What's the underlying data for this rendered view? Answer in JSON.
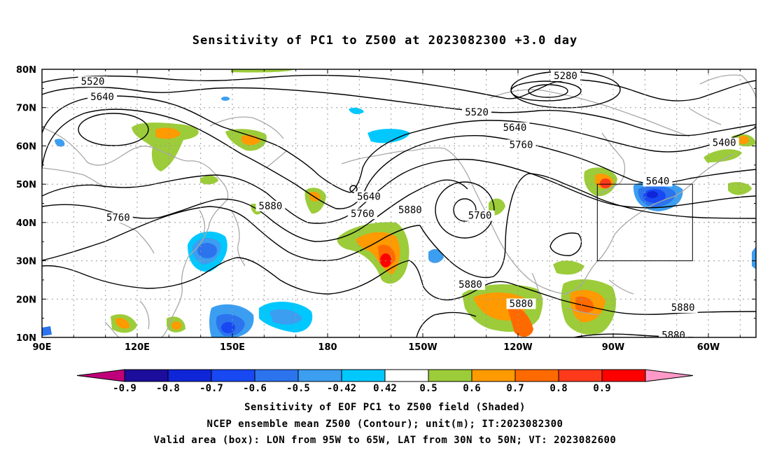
{
  "title": "Sensitivity of PC1 to Z500 at 2023082300 +3.0 day",
  "lat_labels": [
    "80N",
    "70N",
    "60N",
    "50N",
    "40N",
    "30N",
    "20N",
    "10N"
  ],
  "lon_labels": [
    "90E",
    "120E",
    "150E",
    "180",
    "150W",
    "120W",
    "90W",
    "60W"
  ],
  "contour_labels": [
    {
      "text": "5520",
      "lon": 106,
      "lat": 76.5
    },
    {
      "text": "5640",
      "lon": 109,
      "lat": 72.5
    },
    {
      "text": "5760",
      "lon": 114,
      "lat": 41
    },
    {
      "text": "5880",
      "lon": 162,
      "lat": 44
    },
    {
      "text": "5640",
      "lon": 193,
      "lat": 46.5
    },
    {
      "text": "5760",
      "lon": 191,
      "lat": 42
    },
    {
      "text": "5880",
      "lon": 206,
      "lat": 43
    },
    {
      "text": "5760",
      "lon": 228,
      "lat": 41.5
    },
    {
      "text": "5880",
      "lon": 225,
      "lat": 23.5
    },
    {
      "text": "5880",
      "lon": 241,
      "lat": 18.5
    },
    {
      "text": "5520",
      "lon": 227,
      "lat": 68.5
    },
    {
      "text": "5640",
      "lon": 239,
      "lat": 64.5
    },
    {
      "text": "5760",
      "lon": 241,
      "lat": 60
    },
    {
      "text": "5280",
      "lon": 255,
      "lat": 78
    },
    {
      "text": "5400",
      "lon": 305,
      "lat": 60.5
    },
    {
      "text": "5640",
      "lon": 284,
      "lat": 50.5
    },
    {
      "text": "5880",
      "lon": 292,
      "lat": 17.5
    },
    {
      "text": "5880",
      "lon": 289,
      "lat": 10.3
    }
  ],
  "valid_box": {
    "lon_min": 265,
    "lon_max": 295,
    "lat_min": 30,
    "lat_max": 50
  },
  "colorbar": {
    "labels": [
      "-0.9",
      "-0.8",
      "-0.7",
      "-0.6",
      "-0.5",
      "-0.42",
      "0.42",
      "0.5",
      "0.6",
      "0.7",
      "0.8",
      "0.9"
    ],
    "colors": [
      "#c0007a",
      "#1c0d9c",
      "#0f25d8",
      "#1848f2",
      "#2c73ee",
      "#3c9ef0",
      "#00c8ff",
      "#ffffff",
      "#9ccc3a",
      "#ff9a00",
      "#ff6a00",
      "#ff3a1a",
      "#ff0000",
      "#ff99c8"
    ]
  },
  "captions": [
    "Sensitivity of EOF PC1 to Z500 field (Shaded)",
    "NCEP ensemble mean Z500 (Contour); unit(m); IT:2023082300",
    "Valid area (box): LON from 95W to 65W, LAT from 30N to 50N; VT: 2023082600"
  ]
}
